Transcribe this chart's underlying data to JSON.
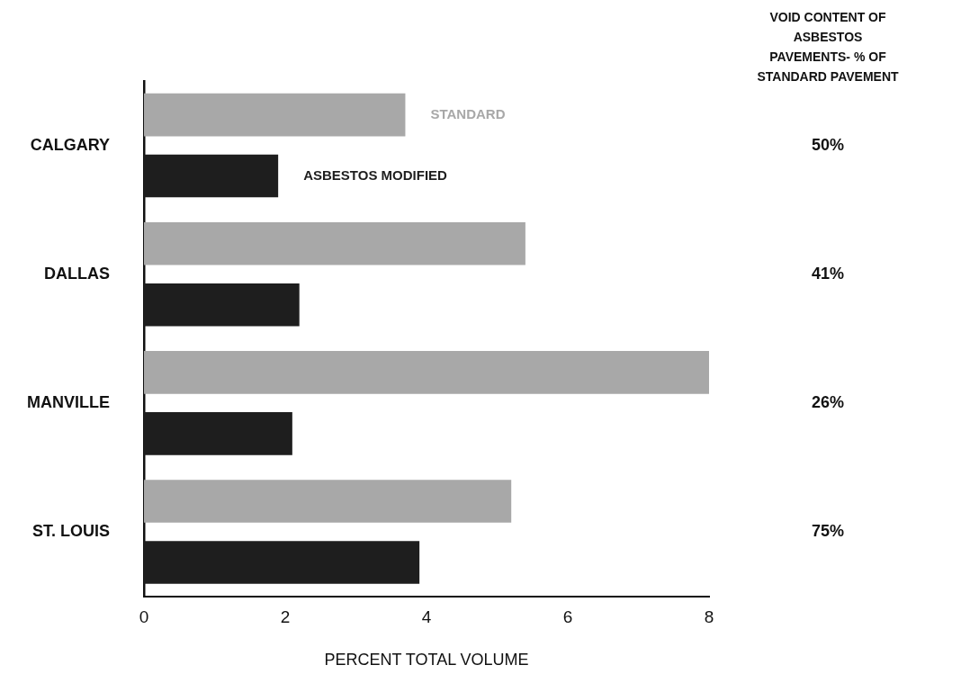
{
  "chart_data": {
    "type": "bar",
    "orientation": "horizontal",
    "xlabel": "PERCENT TOTAL VOLUME",
    "categories": [
      "CALGARY",
      "DALLAS",
      "MANVILLE",
      "ST. LOUIS"
    ],
    "series": [
      {
        "name": "STANDARD",
        "color": "#a8a8a8",
        "values": [
          3.7,
          5.4,
          8.0,
          5.2
        ]
      },
      {
        "name": "ASBESTOS MODIFIED",
        "color": "#1e1e1e",
        "values": [
          1.9,
          2.2,
          2.1,
          3.9
        ]
      }
    ],
    "xlim": [
      0,
      8
    ],
    "xticks": [
      0,
      2,
      4,
      6,
      8
    ],
    "grid": false,
    "legend": false,
    "annotations": [
      "VOID CONTENT OF ASBESTOS PAVEMENTS- % OF STANDARD PAVEMENT",
      "50%",
      "41%",
      "26%",
      "75%"
    ]
  }
}
